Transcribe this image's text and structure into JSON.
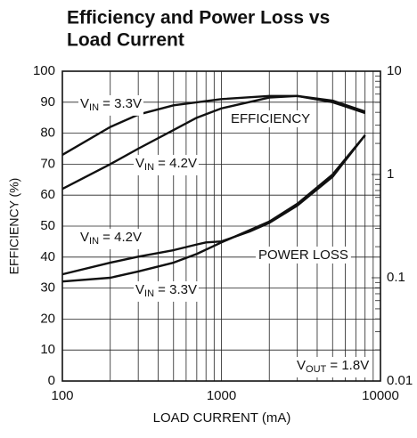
{
  "chart_data": {
    "type": "line",
    "title": [
      "Efficiency and Power Loss vs",
      "Load Current"
    ],
    "xlabel": "LOAD CURRENT (mA)",
    "ylabel": "EFFICIENCY (%)",
    "xscale": "log",
    "y2scale": "log",
    "xlim": [
      100,
      10000
    ],
    "xticks": [
      100,
      1000,
      10000
    ],
    "ylim": [
      0,
      100
    ],
    "yticks": [
      0,
      10,
      20,
      30,
      40,
      50,
      60,
      70,
      80,
      90,
      100
    ],
    "y2lim": [
      0.01,
      10
    ],
    "y2ticks": [
      0.01,
      0.1,
      1,
      10
    ],
    "grid": true,
    "series": [
      {
        "label": [
          "V",
          "IN",
          " = 3.3V"
        ],
        "color": "#111111",
        "x": [
          100,
          200,
          300,
          500,
          1000,
          2000,
          3000,
          5000,
          8000
        ],
        "values": [
          73,
          82,
          86,
          89,
          91,
          92,
          92,
          90,
          86.5
        ]
      },
      {
        "label": [
          "V",
          "IN",
          " = 4.2V"
        ],
        "color": "#111111",
        "x": [
          100,
          200,
          300,
          500,
          700,
          1000,
          2000,
          3000,
          5000,
          8000
        ],
        "values": [
          62,
          70,
          75,
          81,
          85,
          88,
          91.5,
          92,
          90.5,
          87
        ]
      },
      {
        "label": [
          "V",
          "IN",
          " = 4.2V"
        ],
        "color": "#111111",
        "axis": "y2",
        "x": [
          100,
          200,
          300,
          500,
          700,
          800,
          1000,
          1500,
          2000,
          3000,
          5000,
          8000
        ],
        "values": [
          0.108,
          0.14,
          0.16,
          0.185,
          0.21,
          0.22,
          0.225,
          0.28,
          0.34,
          0.5,
          0.95,
          2.4
        ]
      },
      {
        "label": [
          "V",
          "IN",
          " = 3.3V"
        ],
        "color": "#111111",
        "axis": "y2",
        "x": [
          100,
          200,
          300,
          500,
          700,
          1000,
          2000,
          3000,
          5000,
          8000
        ],
        "values": [
          0.092,
          0.1,
          0.115,
          0.14,
          0.17,
          0.22,
          0.35,
          0.52,
          1.0,
          2.4
        ]
      }
    ],
    "annotations": [
      "EFFICIENCY",
      "POWER LOSS"
    ],
    "note": [
      "V",
      "OUT",
      " = 1.8V"
    ]
  }
}
